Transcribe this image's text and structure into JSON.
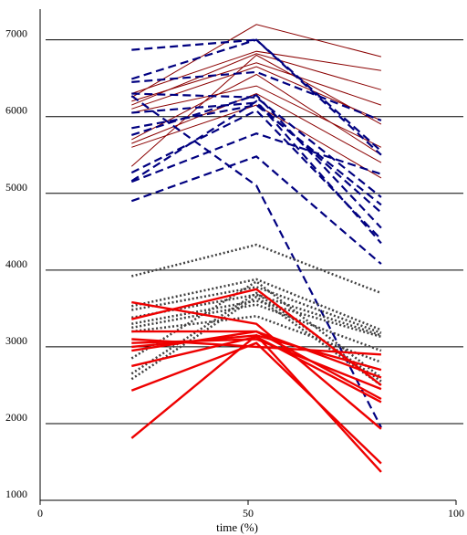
{
  "chart_data": {
    "type": "line",
    "title": "",
    "xlabel": "time (%)",
    "ylabel": "",
    "xlim": [
      0,
      100
    ],
    "ylim": [
      1000,
      7400
    ],
    "x": [
      22,
      52,
      82
    ],
    "x_ticks": [
      0,
      50,
      100
    ],
    "y_ticks": [
      1000,
      2000,
      3000,
      4000,
      5000,
      6000,
      7000
    ],
    "grid": "horizontal",
    "legend": "none",
    "series_groups": [
      {
        "style": "thin-solid",
        "color": "#8b0000",
        "series": [
          {
            "values": [
              6250,
              7200,
              6780
            ]
          },
          {
            "values": [
              6300,
              6850,
              6600
            ]
          },
          {
            "values": [
              6150,
              6820,
              6350
            ]
          },
          {
            "values": [
              6200,
              6700,
              6150
            ]
          },
          {
            "values": [
              6100,
              6650,
              5950
            ]
          },
          {
            "values": [
              6050,
              6400,
              5600
            ]
          },
          {
            "values": [
              5700,
              6550,
              5500
            ]
          },
          {
            "values": [
              5650,
              6300,
              5400
            ]
          },
          {
            "values": [
              5600,
              6150,
              5200
            ]
          },
          {
            "values": [
              5350,
              6800,
              5900
            ]
          }
        ]
      },
      {
        "style": "dashed",
        "color": "#000080",
        "series": [
          {
            "values": [
              6870,
              7000,
              5550
            ]
          },
          {
            "values": [
              6490,
              7000,
              5500
            ]
          },
          {
            "values": [
              6450,
              6580,
              5950
            ]
          },
          {
            "values": [
              6300,
              6250,
              4950
            ]
          },
          {
            "values": [
              6270,
              5100,
              1950
            ]
          },
          {
            "values": [
              6050,
              6180,
              4750
            ]
          },
          {
            "values": [
              5850,
              6150,
              4850
            ]
          },
          {
            "values": [
              5760,
              6280,
              4550
            ]
          },
          {
            "values": [
              5270,
              6080,
              4400
            ]
          },
          {
            "values": [
              5160,
              6200,
              4350
            ]
          },
          {
            "values": [
              5150,
              5780,
              5250
            ]
          },
          {
            "values": [
              4900,
              5480,
              4080
            ]
          }
        ]
      },
      {
        "style": "dotted",
        "color": "#404040",
        "series": [
          {
            "values": [
              3920,
              4330,
              3700
            ]
          },
          {
            "values": [
              3530,
              3880,
              3220
            ]
          },
          {
            "values": [
              3480,
              3780,
              3180
            ]
          },
          {
            "values": [
              3380,
              3680,
              3150
            ]
          },
          {
            "values": [
              3300,
              3600,
              3130
            ]
          },
          {
            "values": [
              3250,
              3550,
              2950
            ]
          },
          {
            "values": [
              3200,
              3400,
              2800
            ]
          },
          {
            "values": [
              2850,
              3850,
              2600
            ]
          },
          {
            "values": [
              2650,
              3700,
              2550
            ]
          },
          {
            "values": [
              2580,
              3650,
              2500
            ]
          }
        ]
      },
      {
        "style": "thick-solid",
        "color": "#ee0000",
        "series": [
          {
            "values": [
              3580,
              3300,
              1930
            ]
          },
          {
            "values": [
              3360,
              3750,
              2500
            ]
          },
          {
            "values": [
              3200,
              3200,
              2320
            ]
          },
          {
            "values": [
              3100,
              3000,
              2900
            ]
          },
          {
            "values": [
              3050,
              3100,
              2450
            ]
          },
          {
            "values": [
              3000,
              3150,
              2700
            ]
          },
          {
            "values": [
              2950,
              3200,
              2600
            ]
          },
          {
            "values": [
              2750,
              3130,
              2280
            ]
          },
          {
            "values": [
              2430,
              3050,
              1480
            ]
          },
          {
            "values": [
              1810,
              3150,
              1370
            ]
          }
        ]
      }
    ]
  }
}
